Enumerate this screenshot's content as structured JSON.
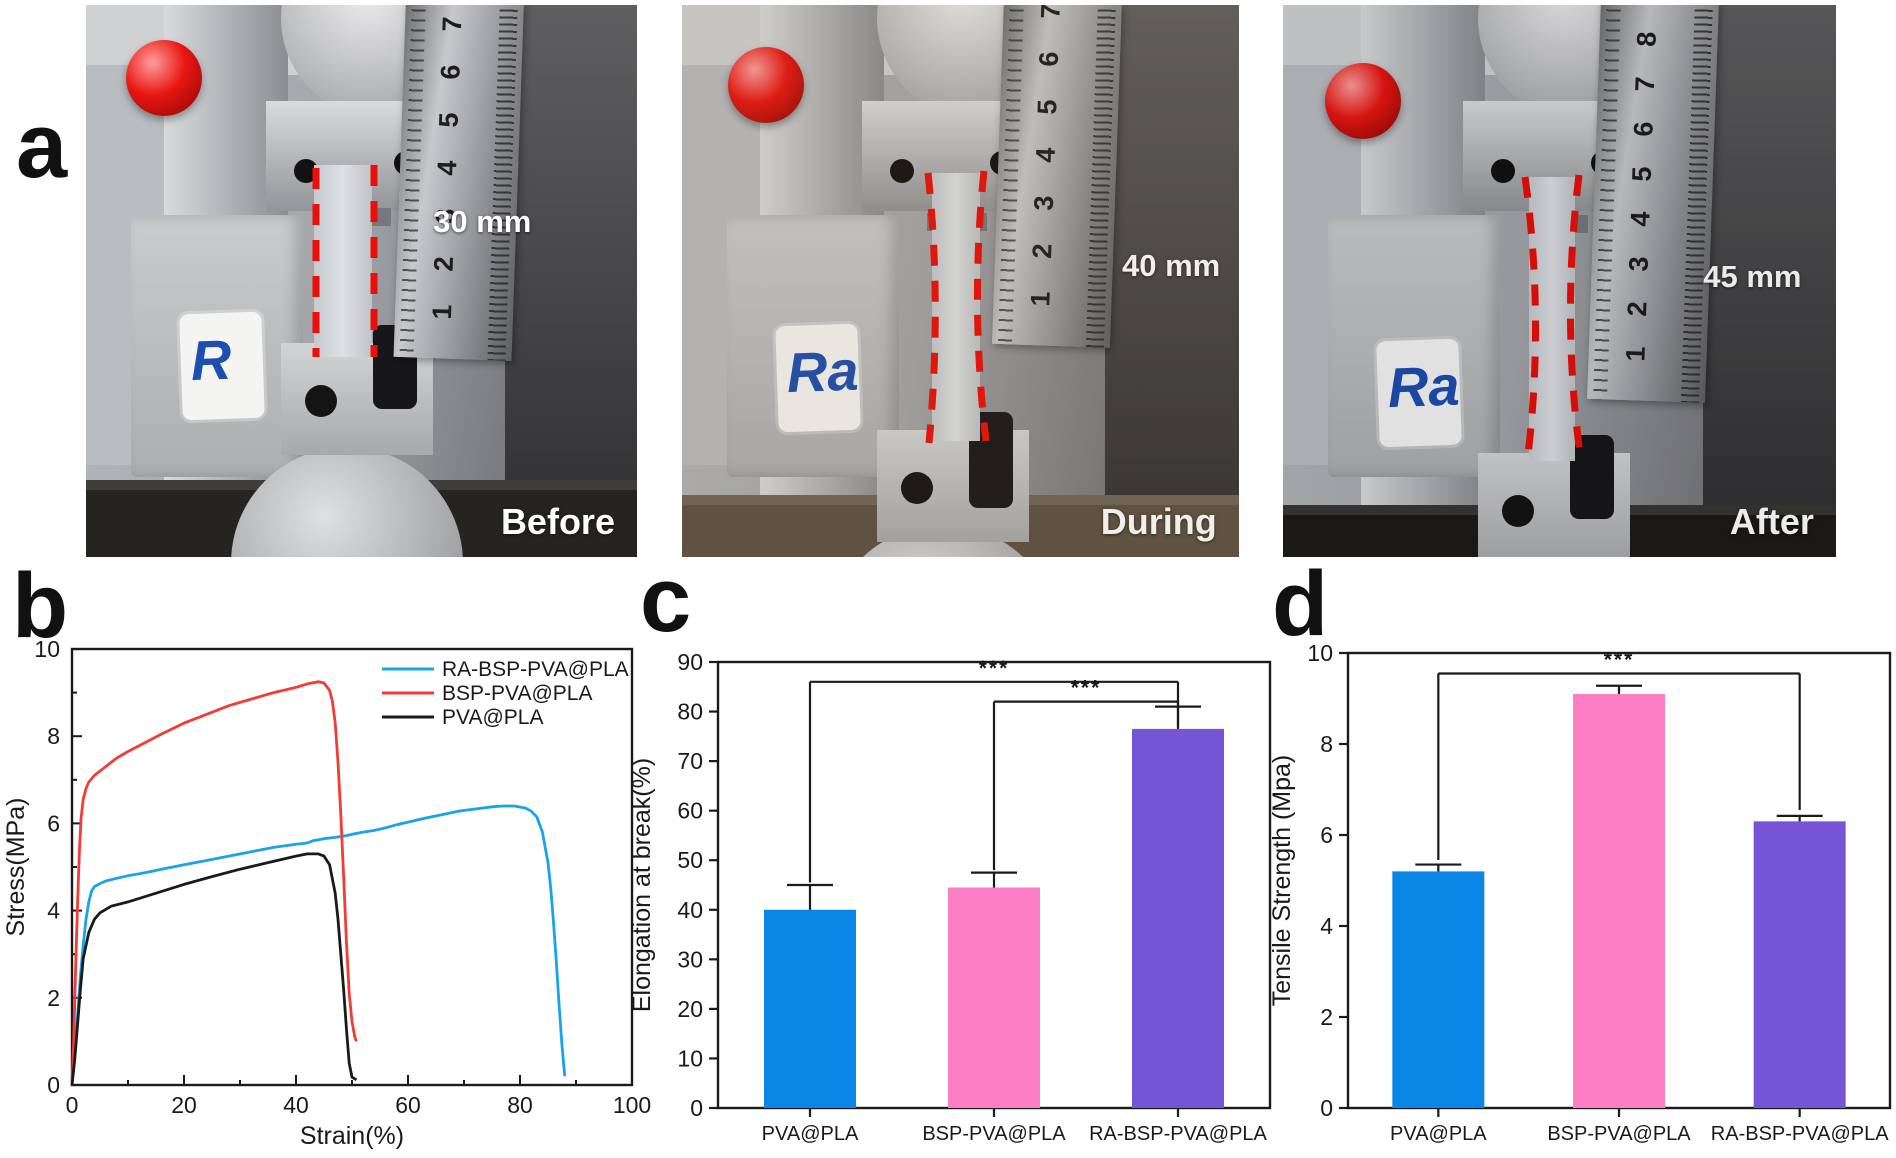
{
  "panel_labels": {
    "a": "a",
    "b": "b",
    "c": "c",
    "d": "d"
  },
  "photos": [
    {
      "phase": "Before",
      "measurement": "30 mm",
      "logo_text": "R",
      "ruler_numbers": [
        "1",
        "2",
        "3",
        "4",
        "5",
        "6",
        "7"
      ]
    },
    {
      "phase": "During",
      "measurement": "40 mm",
      "logo_text": "Ra",
      "ruler_numbers": [
        "1",
        "2",
        "3",
        "4",
        "5",
        "6",
        "7"
      ]
    },
    {
      "phase": "After",
      "measurement": "45 mm",
      "logo_text": "Ra",
      "ruler_numbers": [
        "1",
        "2",
        "3",
        "4",
        "5",
        "6",
        "7",
        "8"
      ]
    }
  ],
  "colors": {
    "bar_blue": "#0a86e6",
    "bar_pink": "#fc7ec5",
    "bar_purple": "#7455d5",
    "curve_blue": "#18a4e8",
    "curve_red": "#f23c35",
    "curve_black": "#1a1a1a",
    "dash_red": "#ea0f08",
    "logo_blue": "#1d4eb0"
  },
  "chart_data": [
    {
      "id": "b",
      "type": "line",
      "xlabel": "Strain(%)",
      "ylabel": "Stress(MPa)",
      "xlim": [
        0,
        100
      ],
      "ylim": [
        0,
        10
      ],
      "xticks": [
        0,
        20,
        40,
        60,
        80,
        100
      ],
      "yticks": [
        0,
        2,
        4,
        6,
        8,
        10
      ],
      "x_minor_step": 10,
      "y_minor_step": 1,
      "legend_position": "top-right",
      "grid": false,
      "series": [
        {
          "name": "RA-BSP-PVA@PLA",
          "color": "#18a4e8",
          "points": [
            [
              0,
              0
            ],
            [
              0.5,
              0.7
            ],
            [
              1,
              1.6
            ],
            [
              1.5,
              2.5
            ],
            [
              2,
              3.2
            ],
            [
              2.5,
              3.8
            ],
            [
              3,
              4.2
            ],
            [
              3.5,
              4.45
            ],
            [
              4,
              4.55
            ],
            [
              5,
              4.62
            ],
            [
              6,
              4.68
            ],
            [
              8,
              4.74
            ],
            [
              10,
              4.8
            ],
            [
              13,
              4.87
            ],
            [
              16,
              4.95
            ],
            [
              20,
              5.05
            ],
            [
              24,
              5.15
            ],
            [
              28,
              5.25
            ],
            [
              32,
              5.35
            ],
            [
              36,
              5.45
            ],
            [
              40,
              5.52
            ],
            [
              42,
              5.55
            ],
            [
              43,
              5.6
            ],
            [
              45,
              5.65
            ],
            [
              47,
              5.68
            ],
            [
              49,
              5.72
            ],
            [
              50,
              5.75
            ],
            [
              52,
              5.8
            ],
            [
              54,
              5.84
            ],
            [
              56,
              5.9
            ],
            [
              58,
              5.97
            ],
            [
              60,
              6.03
            ],
            [
              63,
              6.12
            ],
            [
              66,
              6.2
            ],
            [
              69,
              6.28
            ],
            [
              72,
              6.33
            ],
            [
              75,
              6.38
            ],
            [
              77,
              6.4
            ],
            [
              79,
              6.4
            ],
            [
              81,
              6.35
            ],
            [
              82,
              6.28
            ],
            [
              83,
              6.15
            ],
            [
              84,
              5.8
            ],
            [
              85,
              5.1
            ],
            [
              85.5,
              4.5
            ],
            [
              86,
              3.7
            ],
            [
              86.5,
              2.8
            ],
            [
              87,
              1.8
            ],
            [
              87.5,
              0.9
            ],
            [
              88,
              0.2
            ]
          ]
        },
        {
          "name": "BSP-PVA@PLA",
          "color": "#f23c35",
          "points": [
            [
              0,
              0
            ],
            [
              0.3,
              1
            ],
            [
              0.6,
              2.5
            ],
            [
              1,
              4.2
            ],
            [
              1.3,
              5.3
            ],
            [
              1.6,
              6.1
            ],
            [
              2,
              6.55
            ],
            [
              2.5,
              6.8
            ],
            [
              3,
              6.95
            ],
            [
              4,
              7.1
            ],
            [
              6,
              7.3
            ],
            [
              8,
              7.5
            ],
            [
              10,
              7.65
            ],
            [
              13,
              7.85
            ],
            [
              16,
              8.05
            ],
            [
              20,
              8.3
            ],
            [
              24,
              8.5
            ],
            [
              28,
              8.7
            ],
            [
              32,
              8.85
            ],
            [
              36,
              9.0
            ],
            [
              40,
              9.12
            ],
            [
              42,
              9.2
            ],
            [
              44,
              9.25
            ],
            [
              45,
              9.22
            ],
            [
              46,
              9.05
            ],
            [
              46.5,
              8.8
            ],
            [
              47,
              8.3
            ],
            [
              47.5,
              7.4
            ],
            [
              48,
              6.2
            ],
            [
              48.5,
              4.8
            ],
            [
              49,
              3.3
            ],
            [
              49.5,
              2.1
            ],
            [
              50,
              1.45
            ],
            [
              50.5,
              1.1
            ],
            [
              50.8,
              1.0
            ]
          ]
        },
        {
          "name": "PVA@PLA",
          "color": "#1a1a1a",
          "points": [
            [
              0,
              0
            ],
            [
              0.5,
              0.6
            ],
            [
              1,
              1.4
            ],
            [
              1.5,
              2.2
            ],
            [
              2,
              2.9
            ],
            [
              3,
              3.5
            ],
            [
              4,
              3.8
            ],
            [
              5,
              3.95
            ],
            [
              7,
              4.1
            ],
            [
              10,
              4.2
            ],
            [
              15,
              4.4
            ],
            [
              20,
              4.6
            ],
            [
              25,
              4.78
            ],
            [
              30,
              4.95
            ],
            [
              35,
              5.1
            ],
            [
              40,
              5.25
            ],
            [
              42,
              5.3
            ],
            [
              44,
              5.3
            ],
            [
              45,
              5.25
            ],
            [
              46,
              5.05
            ],
            [
              47,
              4.4
            ],
            [
              47.5,
              3.8
            ],
            [
              48,
              3.0
            ],
            [
              48.5,
              2.2
            ],
            [
              49,
              1.3
            ],
            [
              49.5,
              0.5
            ],
            [
              50,
              0.18
            ],
            [
              50.8,
              0.12
            ]
          ]
        }
      ],
      "legend_order": [
        "RA-BSP-PVA@PLA",
        "BSP-PVA@PLA",
        "PVA@PLA"
      ]
    },
    {
      "id": "c",
      "type": "bar",
      "ylabel": "Elongation at break(%)",
      "ylim": [
        0,
        90
      ],
      "ytick_step": 10,
      "yticks": [
        0,
        10,
        20,
        30,
        40,
        50,
        60,
        70,
        80,
        90
      ],
      "categories": [
        "PVA@PLA",
        "BSP-PVA@PLA",
        "RA-BSP-PVA@PLA"
      ],
      "values": [
        40,
        44.5,
        76.5
      ],
      "errors_up": [
        5,
        3,
        4.5
      ],
      "bar_colors": [
        "#0a86e6",
        "#fc7ec5",
        "#7455d5"
      ],
      "brackets": [
        {
          "from": 0,
          "to": 2,
          "level": 86,
          "end_from": 45.5,
          "end_to": 77,
          "stars": "***"
        },
        {
          "from": 1,
          "to": 2,
          "level": 82,
          "end_from": 48,
          "end_to": 81.3,
          "stars": "***"
        }
      ]
    },
    {
      "id": "d",
      "type": "bar",
      "ylabel": "Tensile Strength (Mpa)",
      "ylim": [
        0,
        10
      ],
      "ytick_step": 2,
      "yticks": [
        0,
        2,
        4,
        6,
        8,
        10
      ],
      "categories": [
        "PVA@PLA",
        "BSP-PVA@PLA",
        "RA-BSP-PVA@PLA"
      ],
      "values": [
        5.2,
        9.1,
        6.3
      ],
      "errors_up": [
        0.15,
        0.18,
        0.12
      ],
      "bar_colors": [
        "#0a86e6",
        "#fc7ec5",
        "#7455d5"
      ],
      "brackets": [
        {
          "from": 0,
          "to": 2,
          "level": 9.55,
          "end_from": 5.45,
          "end_to": 6.55,
          "stars": "***"
        }
      ]
    }
  ]
}
